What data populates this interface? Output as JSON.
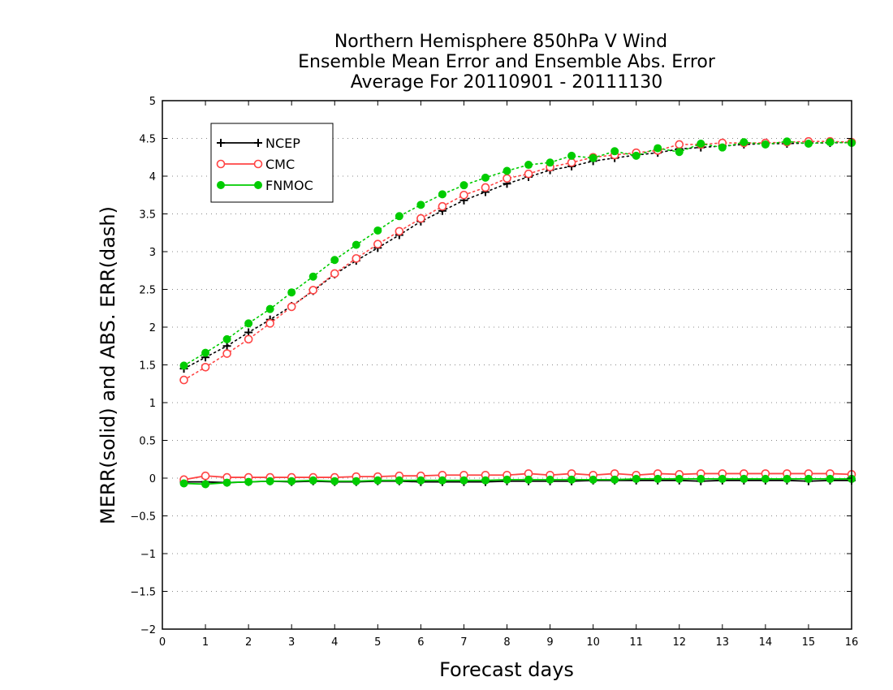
{
  "chart_data": {
    "type": "line",
    "title": [
      "Northern Hemisphere 850hPa V Wind",
      "Ensemble Mean Error and Ensemble Abs. Error",
      "Average For 20110901 - 20111130"
    ],
    "xlabel": "Forecast days",
    "ylabel": "MERR(solid) and ABS. ERR(dash)",
    "xlim": [
      0,
      16
    ],
    "ylim": [
      -2,
      5
    ],
    "x_ticks": [
      0,
      1,
      2,
      3,
      4,
      5,
      6,
      7,
      8,
      9,
      10,
      11,
      12,
      13,
      14,
      15,
      16
    ],
    "x_tick_labels": [
      "0",
      "1",
      "2",
      "3",
      "4",
      "5",
      "6",
      "7",
      "8",
      "9",
      "10",
      "11",
      "12",
      "13",
      "14",
      "15",
      "16"
    ],
    "y_ticks": [
      -2,
      -1.5,
      -1,
      -0.5,
      0,
      0.5,
      1,
      1.5,
      2,
      2.5,
      3,
      3.5,
      4,
      4.5,
      5
    ],
    "y_tick_labels": [
      "−2",
      "−1.5",
      "−1",
      "−0.5",
      "0",
      "0.5",
      "1",
      "1.5",
      "2",
      "2.5",
      "3",
      "3.5",
      "4",
      "4.5",
      "5"
    ],
    "grid": "horizontal dotted",
    "legend_position": "top-left",
    "x": [
      0.5,
      1,
      1.5,
      2,
      2.5,
      3,
      3.5,
      4,
      4.5,
      5,
      5.5,
      6,
      6.5,
      7,
      7.5,
      8,
      8.5,
      9,
      9.5,
      10,
      10.5,
      11,
      11.5,
      12,
      12.5,
      13,
      13.5,
      14,
      14.5,
      15,
      15.5,
      16
    ],
    "series": [
      {
        "name": "NCEP",
        "color": "#000000",
        "marker": "plus",
        "merr": [
          -0.05,
          -0.05,
          -0.06,
          -0.05,
          -0.04,
          -0.05,
          -0.04,
          -0.05,
          -0.05,
          -0.04,
          -0.04,
          -0.05,
          -0.05,
          -0.05,
          -0.05,
          -0.04,
          -0.04,
          -0.04,
          -0.04,
          -0.03,
          -0.03,
          -0.03,
          -0.03,
          -0.03,
          -0.04,
          -0.03,
          -0.03,
          -0.03,
          -0.03,
          -0.04,
          -0.03,
          -0.03
        ],
        "abs_err": [
          1.45,
          1.6,
          1.75,
          1.93,
          2.1,
          2.28,
          2.48,
          2.7,
          2.88,
          3.05,
          3.22,
          3.4,
          3.54,
          3.68,
          3.79,
          3.9,
          3.99,
          4.08,
          4.13,
          4.2,
          4.24,
          4.28,
          4.31,
          4.36,
          4.38,
          4.4,
          4.42,
          4.43,
          4.43,
          4.44,
          4.44,
          4.45
        ]
      },
      {
        "name": "CMC",
        "color": "#ff4444",
        "marker": "open-circle",
        "merr": [
          -0.02,
          0.03,
          0.01,
          0.01,
          0.01,
          0.01,
          0.01,
          0.01,
          0.02,
          0.02,
          0.03,
          0.03,
          0.04,
          0.04,
          0.04,
          0.04,
          0.06,
          0.04,
          0.06,
          0.04,
          0.06,
          0.04,
          0.06,
          0.05,
          0.06,
          0.06,
          0.06,
          0.06,
          0.06,
          0.06,
          0.06,
          0.05
        ],
        "abs_err": [
          1.3,
          1.47,
          1.65,
          1.84,
          2.05,
          2.27,
          2.49,
          2.71,
          2.91,
          3.1,
          3.27,
          3.44,
          3.6,
          3.75,
          3.85,
          3.97,
          4.03,
          4.12,
          4.18,
          4.25,
          4.28,
          4.31,
          4.34,
          4.42,
          4.42,
          4.44,
          4.44,
          4.44,
          4.45,
          4.46,
          4.46,
          4.45
        ]
      },
      {
        "name": "FNMOC",
        "color": "#00cc00",
        "marker": "filled-circle",
        "merr": [
          -0.07,
          -0.08,
          -0.06,
          -0.05,
          -0.04,
          -0.04,
          -0.03,
          -0.04,
          -0.04,
          -0.03,
          -0.03,
          -0.03,
          -0.03,
          -0.03,
          -0.03,
          -0.02,
          -0.02,
          -0.02,
          -0.02,
          -0.02,
          -0.02,
          -0.01,
          -0.01,
          -0.01,
          -0.01,
          -0.01,
          -0.01,
          -0.01,
          -0.01,
          -0.01,
          -0.01,
          -0.01
        ],
        "abs_err": [
          1.49,
          1.66,
          1.84,
          2.05,
          2.24,
          2.46,
          2.67,
          2.89,
          3.09,
          3.28,
          3.47,
          3.62,
          3.76,
          3.88,
          3.98,
          4.07,
          4.15,
          4.18,
          4.27,
          4.24,
          4.33,
          4.27,
          4.37,
          4.32,
          4.43,
          4.38,
          4.45,
          4.42,
          4.46,
          4.43,
          4.45,
          4.44
        ]
      }
    ]
  }
}
